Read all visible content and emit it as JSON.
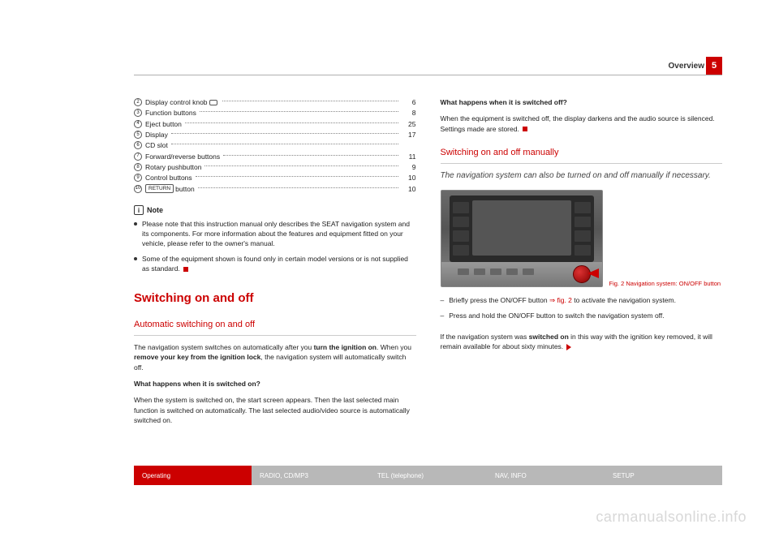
{
  "header": {
    "section": "Overview",
    "page_num": "5"
  },
  "toc": [
    {
      "n": "2",
      "label": "Display control knob",
      "icon": true,
      "page": "6"
    },
    {
      "n": "3",
      "label": "Function buttons",
      "page": "8"
    },
    {
      "n": "4",
      "label": "Eject button",
      "page": "25"
    },
    {
      "n": "5",
      "label": "Display",
      "page": "17"
    },
    {
      "n": "6",
      "label": "CD slot",
      "page": ""
    },
    {
      "n": "7",
      "label": "Forward/reverse buttons",
      "page": "11"
    },
    {
      "n": "8",
      "label": "Rotary pushbutton",
      "page": "9"
    },
    {
      "n": "9",
      "label": "Control buttons",
      "page": "10"
    },
    {
      "n": "10",
      "label": " button",
      "return": true,
      "page": "10"
    }
  ],
  "note": {
    "heading": "Note",
    "items": [
      "Please note that this instruction manual only describes the SEAT navigation system and its components. For more information about the features and equipment fitted on your vehicle, please refer to the owner's manual.",
      "Some of the equipment shown is found only in certain model versions or is not supplied as standard."
    ]
  },
  "s1": {
    "title": "Switching on and off",
    "sub": "Automatic switching on and off",
    "p1a": "The navigation system switches on automatically after you ",
    "p1b": "turn the ignition on",
    "p1c": ". When you ",
    "p1d": "remove your key from the ignition lock",
    "p1e": ", the navigation system will automatically switch off.",
    "q_on": "What happens when it is switched on?",
    "a_on": "When the system is switched on, the start screen appears. Then the last selected main function is switched on automatically. The last selected audio/video source is automatically switched on."
  },
  "s2": {
    "q_off": "What happens when it is switched off?",
    "a_off": "When the equipment is switched off, the display darkens and the audio source is silenced. Settings made are stored.",
    "sub": "Switching on and off manually",
    "lead": "The navigation system can also be turned on and off manually if necessary.",
    "caption": "Fig. 2  Navigation system: ON/OFF button",
    "d1a": "Briefly press the ON/OFF button ",
    "d1b": "⇒ fig. 2",
    "d1c": " to activate the navigation system.",
    "d2": "Press and hold the ON/OFF button to switch the navigation system off.",
    "foot_a": "If the navigation system was ",
    "foot_b": "switched on",
    "foot_c": " in this way with the ignition key removed, it will remain available for about sixty minutes."
  },
  "nav": {
    "items": [
      "Operating",
      "RADIO, CD/MP3",
      "TEL (telephone)",
      "NAV, INFO",
      "SETUP"
    ]
  },
  "watermark": "carmanualsonline.info"
}
